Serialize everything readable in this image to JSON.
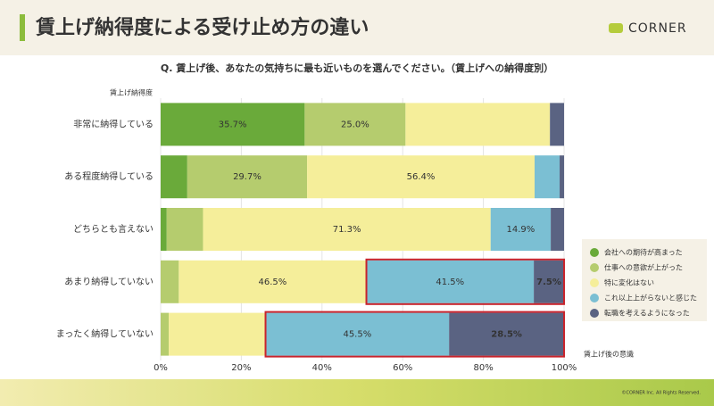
{
  "chart_data": {
    "type": "stacked-bar-horizontal",
    "title": "賃上げ納得度による受け止め方の違い",
    "brand": "CORNER",
    "subtitle": "Q. 賃上げ後、あなたの気持ちに最も近いものを選んでください。（賃上げへの納得度別）",
    "y_label": "賃上げ納得度",
    "legend_title": "賃上げ後の意識",
    "footer": "©CORNER Inc. All Rights Reserved.",
    "categories": [
      "非常に納得している",
      "ある程度納得している",
      "どちらとも言えない",
      "あまり納得していない",
      "まったく納得していない"
    ],
    "series": [
      {
        "name": "会社への期待が高まった",
        "color": "#6aaa3a",
        "values": [
          35.7,
          6.6,
          1.5,
          0,
          0
        ],
        "value_labels": [
          "35.7%",
          null,
          null,
          null,
          null
        ]
      },
      {
        "name": "仕事への意欲が上がった",
        "color": "#b5cc6e",
        "values": [
          25.0,
          29.7,
          9.0,
          4.5,
          2.0
        ],
        "value_labels": [
          "25.0%",
          "29.7%",
          null,
          null,
          null
        ]
      },
      {
        "name": "特に変化はない",
        "color": "#f5ee9a",
        "values": [
          35.8,
          56.4,
          71.3,
          46.5,
          24.0
        ],
        "value_labels": [
          null,
          "56.4%",
          "71.3%",
          "46.5%",
          null
        ]
      },
      {
        "name": "これ以上上がらないと感じた",
        "color": "#7bbfd3",
        "values": [
          0,
          6.2,
          14.9,
          41.5,
          45.5
        ],
        "value_labels": [
          null,
          null,
          "14.9%",
          "41.5%",
          "45.5%"
        ]
      },
      {
        "name": "転職を考えるようになった",
        "color": "#5a6382",
        "values": [
          3.5,
          1.1,
          3.3,
          7.5,
          28.5
        ],
        "value_labels": [
          null,
          null,
          null,
          "7.5%",
          "28.5%"
        ]
      }
    ],
    "xlim": [
      0,
      100
    ],
    "xticks": [
      {
        "value": 0,
        "label": "0%"
      },
      {
        "value": 20,
        "label": "20%"
      },
      {
        "value": 40,
        "label": "40%"
      },
      {
        "value": 60,
        "label": "60%"
      },
      {
        "value": 80,
        "label": "80%"
      },
      {
        "value": 100,
        "label": "100%"
      }
    ],
    "grid": true
  }
}
